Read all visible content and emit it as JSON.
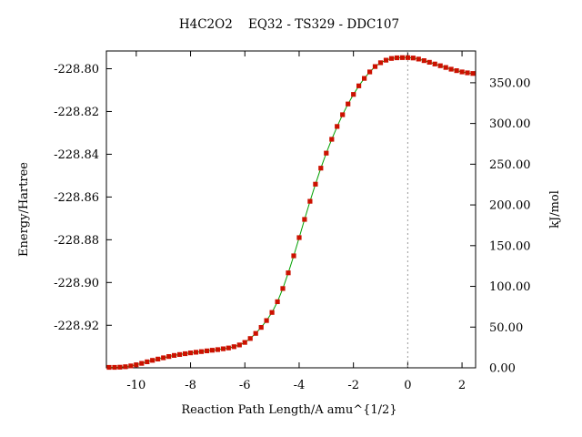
{
  "chart_data": {
    "type": "line",
    "title": "H4C2O2    EQ32 - TS329 - DDC107",
    "xlabel": "Reaction Path Length/A amu^{1/2}",
    "ylabel": "Energy/Hartree",
    "y2label": "kJ/mol",
    "xlim": [
      -11.1,
      2.5
    ],
    "ylim": [
      -228.9399,
      -228.7917
    ],
    "y2lim": [
      0,
      389.0
    ],
    "xticks": [
      -10,
      -8,
      -6,
      -4,
      -2,
      0,
      2
    ],
    "yticks": [
      -228.8,
      -228.82,
      -228.84,
      -228.86,
      -228.88,
      -228.9,
      -228.92
    ],
    "ytick_labels": [
      "-228.80",
      "-228.82",
      "-228.84",
      "-228.86",
      "-228.88",
      "-228.90",
      "-228.92"
    ],
    "y2ticks": [
      0,
      50,
      100,
      150,
      200,
      250,
      300,
      350
    ],
    "y2tick_labels": [
      "0.00",
      "50.00",
      "100.00",
      "150.00",
      "200.00",
      "250.00",
      "300.00",
      "350.00"
    ],
    "ts_marker_x": 0.0,
    "grid": false,
    "colors": {
      "line": "#00a000",
      "marker": "#cc1100",
      "ts_line": "#999999"
    },
    "series": [
      {
        "x": [
          -11.0,
          -10.8,
          -10.6,
          -10.4,
          -10.2,
          -10.0,
          -9.8,
          -9.6,
          -9.4,
          -9.2,
          -9.0,
          -8.8,
          -8.6,
          -8.4,
          -8.2,
          -8.0,
          -7.8,
          -7.6,
          -7.4,
          -7.2,
          -7.0,
          -6.8,
          -6.6,
          -6.4,
          -6.2,
          -6.0,
          -5.8,
          -5.6,
          -5.4,
          -5.2,
          -5.0,
          -4.8,
          -4.6,
          -4.4,
          -4.2,
          -4.0,
          -3.8,
          -3.6,
          -3.4,
          -3.2,
          -3.0,
          -2.8,
          -2.6,
          -2.4,
          -2.2,
          -2.0,
          -1.8,
          -1.6,
          -1.4,
          -1.2,
          -1.0,
          -0.8,
          -0.6,
          -0.4,
          -0.2,
          0.0,
          0.2,
          0.4,
          0.6,
          0.8,
          1.0,
          1.2,
          1.4,
          1.6,
          1.8,
          2.0,
          2.2,
          2.4
        ],
        "y": [
          -228.9397,
          -228.9397,
          -228.9396,
          -228.9394,
          -228.939,
          -228.9385,
          -228.9378,
          -228.9371,
          -228.9364,
          -228.9358,
          -228.9352,
          -228.9346,
          -228.9341,
          -228.9337,
          -228.9333,
          -228.9329,
          -228.9326,
          -228.9323,
          -228.932,
          -228.9317,
          -228.9314,
          -228.931,
          -228.9306,
          -228.93,
          -228.9292,
          -228.928,
          -228.9262,
          -228.9238,
          -228.921,
          -228.9178,
          -228.914,
          -228.909,
          -228.9028,
          -228.8955,
          -228.8875,
          -228.879,
          -228.8705,
          -228.862,
          -228.854,
          -228.8465,
          -228.8395,
          -228.833,
          -228.827,
          -228.8215,
          -228.8165,
          -228.812,
          -228.808,
          -228.8045,
          -228.8015,
          -228.799,
          -228.7972,
          -228.796,
          -228.7952,
          -228.7949,
          -228.7948,
          -228.7948,
          -228.795,
          -228.7955,
          -228.7962,
          -228.797,
          -228.7978,
          -228.7986,
          -228.7994,
          -228.8002,
          -228.8009,
          -228.8015,
          -228.8019,
          -228.8022
        ]
      }
    ]
  }
}
